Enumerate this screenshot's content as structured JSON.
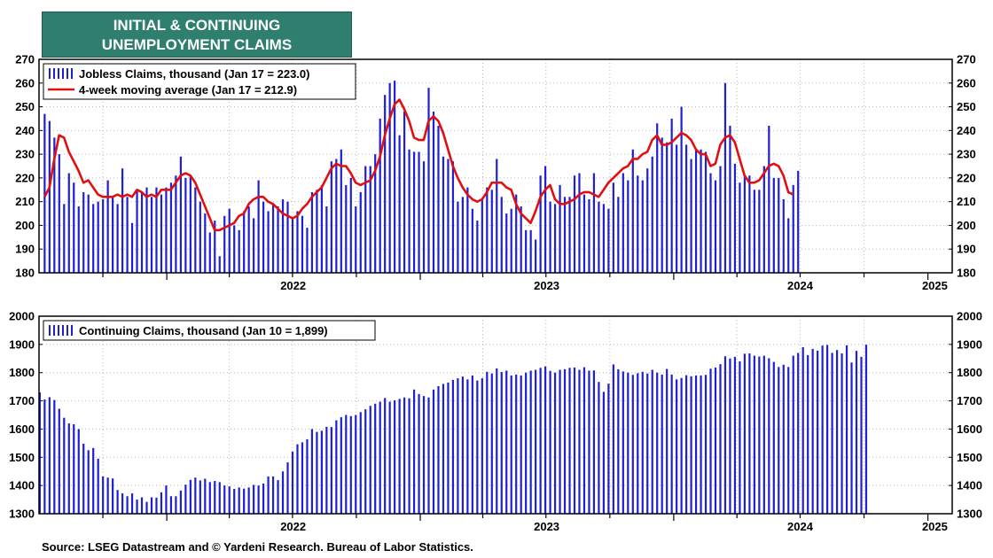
{
  "title": {
    "line1": "INITIAL & CONTINUING",
    "line2": "UNEMPLOYMENT CLAIMS"
  },
  "source": "Source: LSEG Datastream and © Yardeni Research. Bureau of Labor Statistics.",
  "colors": {
    "bars": "#1f1fd6",
    "moving_average": "#e01010",
    "title_bg": "#2f7f6f"
  },
  "chart_data": [
    {
      "type": "bar",
      "ylim": [
        180,
        270
      ],
      "yticks": [
        180,
        190,
        200,
        210,
        220,
        230,
        240,
        250,
        260,
        270
      ],
      "xticks": [
        "2022",
        "2023",
        "2024",
        "2025"
      ],
      "legend_position": "top-left",
      "grid": true,
      "x_start": "2021-07-09",
      "x_step_days": 7,
      "series": [
        {
          "name": "Jobless Claims, thousand (Jan 17 = 223.0)",
          "type": "bar",
          "values": [
            247,
            244,
            237,
            230,
            209,
            222,
            218,
            208,
            214,
            213,
            209,
            210,
            211,
            219,
            212,
            209,
            224,
            212,
            201,
            215,
            214,
            216,
            212,
            216,
            213,
            216,
            218,
            221,
            229,
            220,
            221,
            216,
            210,
            205,
            197,
            202,
            187,
            204,
            207,
            200,
            198,
            206,
            208,
            203,
            219,
            210,
            206,
            209,
            208,
            211,
            210,
            203,
            206,
            204,
            199,
            214,
            215,
            217,
            208,
            227,
            228,
            232,
            217,
            220,
            208,
            214,
            225,
            225,
            230,
            245,
            255,
            260,
            261,
            238,
            248,
            232,
            231,
            231,
            227,
            258,
            248,
            242,
            229,
            228,
            227,
            210,
            212,
            216,
            207,
            202,
            211,
            216,
            215,
            228,
            212,
            205,
            207,
            213,
            208,
            198,
            198,
            194,
            221,
            225,
            210,
            209,
            217,
            212,
            212,
            221,
            222,
            213,
            211,
            222,
            210,
            209,
            207,
            218,
            212,
            222,
            219,
            232,
            221,
            219,
            224,
            229,
            243,
            237,
            235,
            245,
            234,
            250,
            234,
            228,
            232,
            232,
            231,
            222,
            219,
            225,
            260,
            242,
            226,
            218,
            221,
            221,
            215,
            215,
            225,
            242,
            220,
            220,
            211,
            203,
            217,
            223
          ]
        },
        {
          "name": "4-week moving average (Jan 17 = 212.9)",
          "type": "line",
          "values": [
            212,
            216,
            228,
            238,
            237,
            231,
            227,
            223,
            218,
            219,
            216,
            213,
            212,
            212,
            212,
            213,
            212,
            213,
            212,
            215,
            214,
            212,
            213,
            212,
            215,
            215,
            215,
            218,
            221,
            222,
            221,
            218,
            213,
            208,
            203,
            198,
            198,
            199,
            200,
            201,
            204,
            205,
            209,
            211,
            212,
            212,
            210,
            209,
            207,
            205,
            204,
            203,
            204,
            207,
            209,
            212,
            214,
            216,
            220,
            224,
            226,
            225,
            225,
            222,
            218,
            217,
            218,
            219,
            223,
            229,
            238,
            245,
            251,
            253,
            249,
            244,
            237,
            236,
            236,
            244,
            246,
            244,
            239,
            232,
            225,
            220,
            216,
            213,
            211,
            210,
            211,
            214,
            218,
            218,
            218,
            216,
            215,
            209,
            205,
            203,
            201,
            206,
            212,
            215,
            217,
            211,
            209,
            209,
            210,
            211,
            213,
            214,
            214,
            213,
            212,
            215,
            218,
            220,
            222,
            224,
            225,
            228,
            228,
            230,
            231,
            236,
            238,
            234,
            234,
            235,
            237,
            239,
            238,
            236,
            232,
            230,
            230,
            225,
            226,
            234,
            237,
            238,
            235,
            228,
            221,
            218,
            218,
            219,
            222,
            225,
            226,
            225,
            221,
            214,
            213
          ]
        }
      ]
    },
    {
      "type": "bar",
      "ylim": [
        1300,
        2000
      ],
      "yticks": [
        1300,
        1400,
        1500,
        1600,
        1700,
        1800,
        1900,
        2000
      ],
      "xticks": [
        "2022",
        "2023",
        "2024",
        "2025"
      ],
      "legend_position": "top-left",
      "grid": true,
      "x_start": "2021-07-02",
      "x_step_days": 7,
      "series": [
        {
          "name": "Continuing Claims, thousand (Jan 10 = 1,899)",
          "type": "bar",
          "values": [
            1730,
            1705,
            1713,
            1703,
            1672,
            1640,
            1620,
            1617,
            1600,
            1548,
            1525,
            1533,
            1495,
            1432,
            1428,
            1425,
            1384,
            1372,
            1362,
            1372,
            1350,
            1358,
            1342,
            1358,
            1357,
            1376,
            1400,
            1362,
            1362,
            1382,
            1403,
            1420,
            1428,
            1418,
            1424,
            1412,
            1416,
            1412,
            1400,
            1397,
            1388,
            1393,
            1389,
            1393,
            1402,
            1400,
            1407,
            1432,
            1432,
            1419,
            1450,
            1482,
            1520,
            1546,
            1553,
            1564,
            1600,
            1590,
            1594,
            1608,
            1607,
            1631,
            1642,
            1650,
            1646,
            1650,
            1660,
            1670,
            1682,
            1690,
            1697,
            1710,
            1697,
            1702,
            1707,
            1712,
            1709,
            1740,
            1724,
            1717,
            1712,
            1740,
            1752,
            1760,
            1765,
            1774,
            1780,
            1786,
            1776,
            1790,
            1772,
            1780,
            1803,
            1797,
            1815,
            1802,
            1807,
            1790,
            1793,
            1790,
            1800,
            1807,
            1810,
            1817,
            1822,
            1806,
            1800,
            1810,
            1812,
            1817,
            1818,
            1810,
            1819,
            1807,
            1808,
            1767,
            1732,
            1761,
            1829,
            1812,
            1804,
            1800,
            1792,
            1798,
            1803,
            1797,
            1810,
            1800,
            1793,
            1813,
            1793,
            1776,
            1781,
            1791,
            1787,
            1790,
            1790,
            1792,
            1814,
            1818,
            1830,
            1858,
            1850,
            1856,
            1840,
            1867,
            1868,
            1860,
            1857,
            1860,
            1851,
            1838,
            1820,
            1828,
            1820,
            1860,
            1870,
            1890,
            1862,
            1884,
            1878,
            1896,
            1898,
            1870,
            1880,
            1868,
            1897,
            1836,
            1877,
            1856,
            1899
          ]
        }
      ]
    }
  ]
}
